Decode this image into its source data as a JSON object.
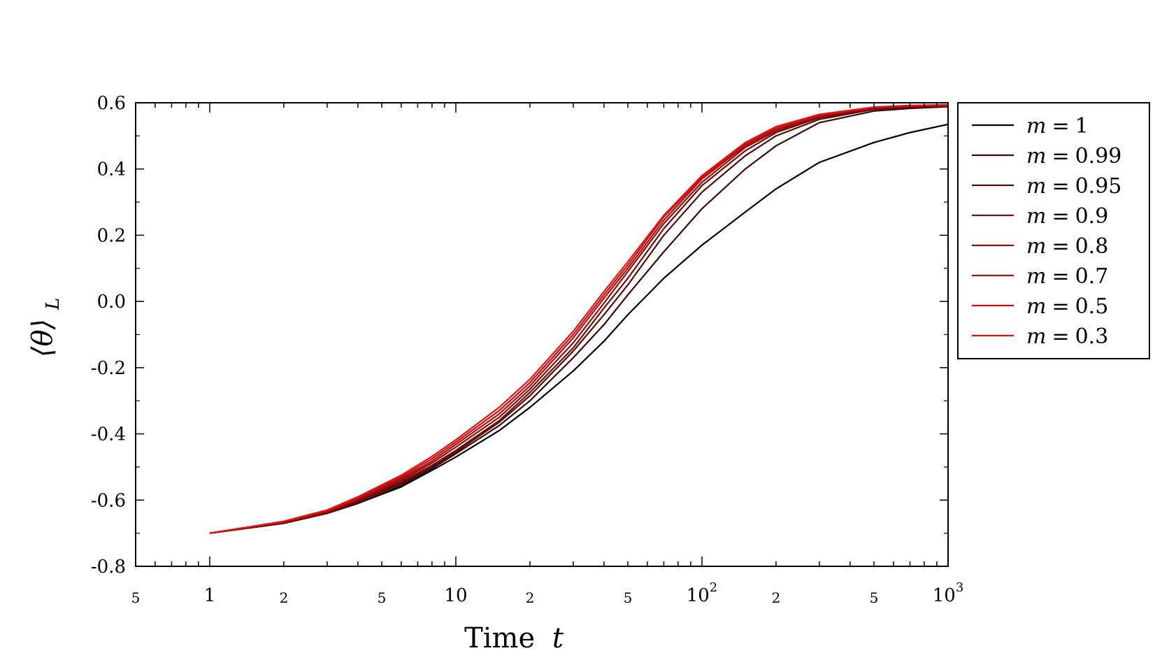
{
  "chart_data": {
    "type": "line",
    "xlabel": "Time",
    "xlabel_var": "t",
    "ylabel_main": "⟨θ⟩",
    "ylabel_sub": "L",
    "xscale": "log",
    "xlim": [
      0.5,
      1000
    ],
    "ylim": [
      -0.8,
      0.6
    ],
    "grid": false,
    "legend_position": "outside-right",
    "y_ticks": [
      {
        "value": 0.6,
        "label": "0.6"
      },
      {
        "value": 0.4,
        "label": "0.4"
      },
      {
        "value": 0.2,
        "label": "0.2"
      },
      {
        "value": 0.0,
        "label": "0.0"
      },
      {
        "value": -0.2,
        "label": "-0.2"
      },
      {
        "value": -0.4,
        "label": "-0.4"
      },
      {
        "value": -0.6,
        "label": "-0.6"
      },
      {
        "value": -0.8,
        "label": "-0.8"
      }
    ],
    "x_major_ticks": [
      {
        "value": 1,
        "label": "1"
      },
      {
        "value": 10,
        "label": "10"
      },
      {
        "value": 100,
        "base": "10",
        "exp": "2"
      },
      {
        "value": 1000,
        "base": "10",
        "exp": "3"
      }
    ],
    "x_minor_labels": [
      {
        "value": 0.5,
        "label": "5"
      },
      {
        "value": 2,
        "label": "2"
      },
      {
        "value": 5,
        "label": "5"
      },
      {
        "value": 20,
        "label": "2"
      },
      {
        "value": 50,
        "label": "5"
      },
      {
        "value": 200,
        "label": "2"
      },
      {
        "value": 500,
        "label": "5"
      }
    ],
    "x": [
      1,
      2,
      3,
      4,
      6,
      8,
      10,
      15,
      20,
      30,
      40,
      50,
      70,
      100,
      150,
      200,
      300,
      500,
      700,
      1000
    ],
    "series": [
      {
        "name": "m = 1",
        "m_value": "1",
        "color": "#000000",
        "values": [
          -0.7,
          -0.67,
          -0.64,
          -0.61,
          -0.56,
          -0.51,
          -0.47,
          -0.39,
          -0.32,
          -0.21,
          -0.12,
          -0.04,
          0.07,
          0.17,
          0.27,
          0.34,
          0.42,
          0.48,
          0.51,
          0.535
        ]
      },
      {
        "name": "m = 0.99",
        "m_value": "0.99",
        "color": "#3a0a0a",
        "values": [
          -0.7,
          -0.67,
          -0.64,
          -0.61,
          -0.555,
          -0.505,
          -0.46,
          -0.375,
          -0.3,
          -0.17,
          -0.07,
          0.02,
          0.15,
          0.28,
          0.4,
          0.47,
          0.54,
          0.575,
          0.583,
          0.588
        ]
      },
      {
        "name": "m = 0.95",
        "m_value": "0.95",
        "color": "#550b0b",
        "values": [
          -0.7,
          -0.67,
          -0.64,
          -0.605,
          -0.55,
          -0.5,
          -0.455,
          -0.365,
          -0.285,
          -0.15,
          -0.04,
          0.05,
          0.2,
          0.33,
          0.44,
          0.5,
          0.55,
          0.58,
          0.587,
          0.59
        ]
      },
      {
        "name": "m = 0.9",
        "m_value": "0.9",
        "color": "#700c0c",
        "values": [
          -0.7,
          -0.668,
          -0.638,
          -0.603,
          -0.545,
          -0.495,
          -0.45,
          -0.36,
          -0.275,
          -0.14,
          -0.02,
          0.07,
          0.22,
          0.35,
          0.455,
          0.51,
          0.555,
          0.582,
          0.588,
          0.59
        ]
      },
      {
        "name": "m = 0.8",
        "m_value": "0.8",
        "color": "#8c0d0d",
        "values": [
          -0.7,
          -0.667,
          -0.635,
          -0.6,
          -0.54,
          -0.488,
          -0.44,
          -0.35,
          -0.265,
          -0.125,
          -0.005,
          0.09,
          0.235,
          0.36,
          0.465,
          0.515,
          0.558,
          0.584,
          0.589,
          0.591
        ]
      },
      {
        "name": "m = 0.7",
        "m_value": "0.7",
        "color": "#a80e0e",
        "values": [
          -0.7,
          -0.666,
          -0.634,
          -0.597,
          -0.535,
          -0.482,
          -0.432,
          -0.34,
          -0.255,
          -0.11,
          0.01,
          0.1,
          0.245,
          0.37,
          0.47,
          0.52,
          0.56,
          0.585,
          0.59,
          0.592
        ]
      },
      {
        "name": "m = 0.5",
        "m_value": "0.5",
        "color": "#c80f0f",
        "values": [
          -0.7,
          -0.665,
          -0.632,
          -0.594,
          -0.53,
          -0.475,
          -0.425,
          -0.33,
          -0.245,
          -0.1,
          0.02,
          0.11,
          0.255,
          0.375,
          0.475,
          0.525,
          0.563,
          0.586,
          0.591,
          0.593
        ]
      },
      {
        "name": "m = 0.3",
        "m_value": "0.3",
        "color": "#e81010",
        "values": [
          -0.7,
          -0.664,
          -0.63,
          -0.59,
          -0.525,
          -0.468,
          -0.418,
          -0.32,
          -0.235,
          -0.09,
          0.03,
          0.12,
          0.26,
          0.38,
          0.48,
          0.528,
          0.565,
          0.587,
          0.592,
          0.594
        ]
      }
    ]
  }
}
